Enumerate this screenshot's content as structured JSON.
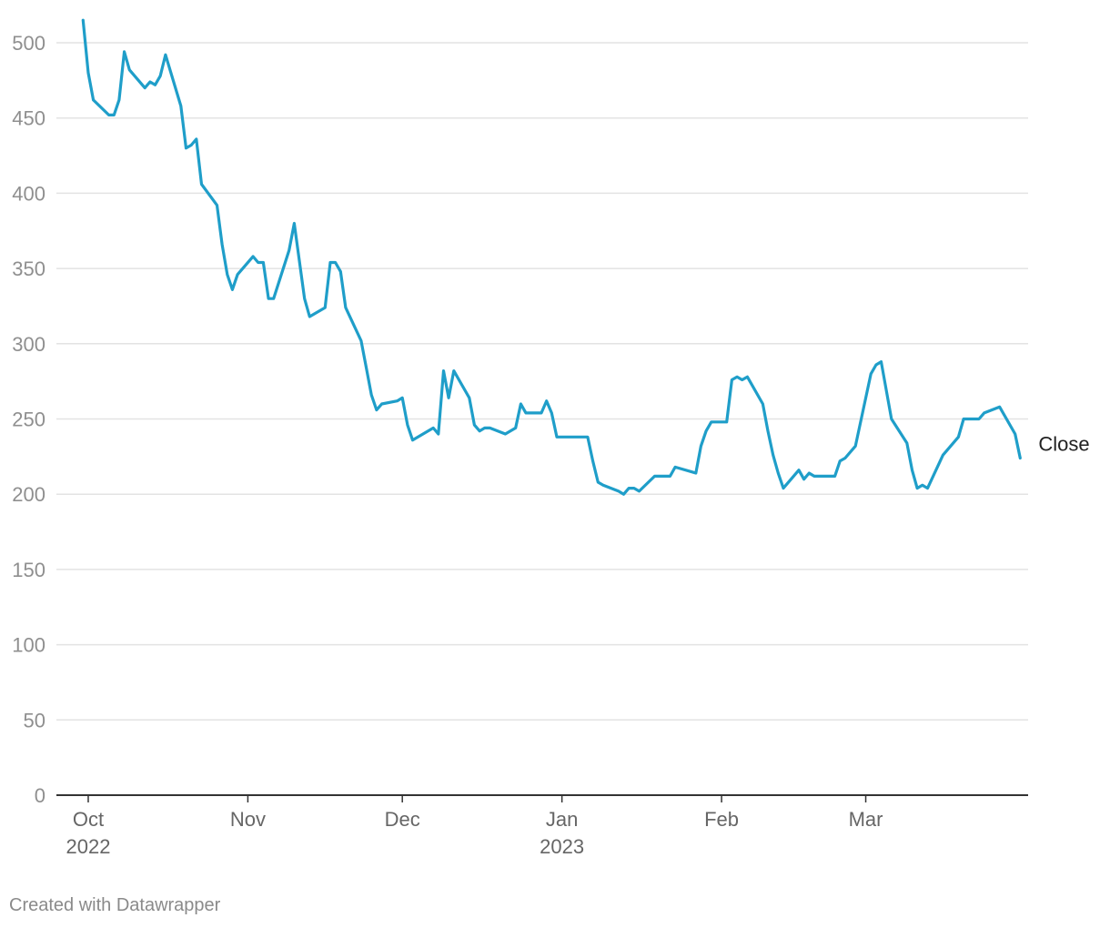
{
  "chart_data": {
    "type": "line",
    "title": "",
    "xlabel": "",
    "ylabel": "",
    "ylim": [
      0,
      500
    ],
    "yticks": [
      0,
      50,
      100,
      150,
      200,
      250,
      300,
      350,
      400,
      450,
      500
    ],
    "grid": true,
    "x_range": [
      "2022-09-28",
      "2023-03-29"
    ],
    "x_ticks": [
      {
        "date": "2022-10-01",
        "label": "Oct",
        "sublabel": "2022"
      },
      {
        "date": "2022-11-01",
        "label": "Nov",
        "sublabel": ""
      },
      {
        "date": "2022-12-01",
        "label": "Dec",
        "sublabel": ""
      },
      {
        "date": "2023-01-01",
        "label": "Jan",
        "sublabel": "2023"
      },
      {
        "date": "2023-02-01",
        "label": "Feb",
        "sublabel": ""
      },
      {
        "date": "2023-03-01",
        "label": "Mar",
        "sublabel": ""
      }
    ],
    "series": [
      {
        "name": "Close",
        "color": "#1f9ec9",
        "points": [
          [
            "2022-09-30",
            515
          ],
          [
            "2022-10-01",
            480
          ],
          [
            "2022-10-02",
            462
          ],
          [
            "2022-10-05",
            452
          ],
          [
            "2022-10-06",
            452
          ],
          [
            "2022-10-07",
            462
          ],
          [
            "2022-10-08",
            494
          ],
          [
            "2022-10-09",
            482
          ],
          [
            "2022-10-12",
            470
          ],
          [
            "2022-10-13",
            474
          ],
          [
            "2022-10-14",
            472
          ],
          [
            "2022-10-15",
            478
          ],
          [
            "2022-10-16",
            492
          ],
          [
            "2022-10-19",
            458
          ],
          [
            "2022-10-20",
            430
          ],
          [
            "2022-10-21",
            432
          ],
          [
            "2022-10-22",
            436
          ],
          [
            "2022-10-23",
            406
          ],
          [
            "2022-10-26",
            392
          ],
          [
            "2022-10-27",
            366
          ],
          [
            "2022-10-28",
            346
          ],
          [
            "2022-10-29",
            336
          ],
          [
            "2022-10-30",
            346
          ],
          [
            "2022-11-02",
            358
          ],
          [
            "2022-11-03",
            354
          ],
          [
            "2022-11-04",
            354
          ],
          [
            "2022-11-05",
            330
          ],
          [
            "2022-11-06",
            330
          ],
          [
            "2022-11-09",
            362
          ],
          [
            "2022-11-10",
            380
          ],
          [
            "2022-11-12",
            330
          ],
          [
            "2022-11-13",
            318
          ],
          [
            "2022-11-16",
            324
          ],
          [
            "2022-11-17",
            354
          ],
          [
            "2022-11-18",
            354
          ],
          [
            "2022-11-19",
            348
          ],
          [
            "2022-11-20",
            324
          ],
          [
            "2022-11-23",
            302
          ],
          [
            "2022-11-24",
            284
          ],
          [
            "2022-11-25",
            266
          ],
          [
            "2022-11-26",
            256
          ],
          [
            "2022-11-27",
            260
          ],
          [
            "2022-11-30",
            262
          ],
          [
            "2022-12-01",
            264
          ],
          [
            "2022-12-02",
            246
          ],
          [
            "2022-12-03",
            236
          ],
          [
            "2022-12-07",
            244
          ],
          [
            "2022-12-08",
            240
          ],
          [
            "2022-12-09",
            282
          ],
          [
            "2022-12-10",
            264
          ],
          [
            "2022-12-11",
            282
          ],
          [
            "2022-12-14",
            264
          ],
          [
            "2022-12-15",
            246
          ],
          [
            "2022-12-16",
            242
          ],
          [
            "2022-12-17",
            244
          ],
          [
            "2022-12-18",
            244
          ],
          [
            "2022-12-21",
            240
          ],
          [
            "2022-12-23",
            244
          ],
          [
            "2022-12-24",
            260
          ],
          [
            "2022-12-25",
            254
          ],
          [
            "2022-12-28",
            254
          ],
          [
            "2022-12-29",
            262
          ],
          [
            "2022-12-30",
            254
          ],
          [
            "2022-12-31",
            238
          ],
          [
            "2023-01-06",
            238
          ],
          [
            "2023-01-07",
            222
          ],
          [
            "2023-01-08",
            208
          ],
          [
            "2023-01-09",
            206
          ],
          [
            "2023-01-12",
            202
          ],
          [
            "2023-01-13",
            200
          ],
          [
            "2023-01-14",
            204
          ],
          [
            "2023-01-15",
            204
          ],
          [
            "2023-01-16",
            202
          ],
          [
            "2023-01-19",
            212
          ],
          [
            "2023-01-22",
            212
          ],
          [
            "2023-01-23",
            218
          ],
          [
            "2023-01-27",
            214
          ],
          [
            "2023-01-28",
            232
          ],
          [
            "2023-01-29",
            242
          ],
          [
            "2023-01-30",
            248
          ],
          [
            "2023-02-02",
            248
          ],
          [
            "2023-02-03",
            276
          ],
          [
            "2023-02-04",
            278
          ],
          [
            "2023-02-05",
            276
          ],
          [
            "2023-02-06",
            278
          ],
          [
            "2023-02-09",
            260
          ],
          [
            "2023-02-10",
            242
          ],
          [
            "2023-02-11",
            226
          ],
          [
            "2023-02-12",
            214
          ],
          [
            "2023-02-13",
            204
          ],
          [
            "2023-02-16",
            216
          ],
          [
            "2023-02-17",
            210
          ],
          [
            "2023-02-18",
            214
          ],
          [
            "2023-02-19",
            212
          ],
          [
            "2023-02-23",
            212
          ],
          [
            "2023-02-24",
            222
          ],
          [
            "2023-02-25",
            224
          ],
          [
            "2023-02-27",
            232
          ],
          [
            "2023-03-02",
            280
          ],
          [
            "2023-03-03",
            286
          ],
          [
            "2023-03-04",
            288
          ],
          [
            "2023-03-06",
            250
          ],
          [
            "2023-03-09",
            234
          ],
          [
            "2023-03-10",
            216
          ],
          [
            "2023-03-11",
            204
          ],
          [
            "2023-03-12",
            206
          ],
          [
            "2023-03-13",
            204
          ],
          [
            "2023-03-16",
            226
          ],
          [
            "2023-03-19",
            238
          ],
          [
            "2023-03-20",
            250
          ],
          [
            "2023-03-23",
            250
          ],
          [
            "2023-03-24",
            254
          ],
          [
            "2023-03-27",
            258
          ],
          [
            "2023-03-30",
            240
          ],
          [
            "2023-03-31",
            224
          ]
        ]
      }
    ]
  },
  "footer": {
    "credit": "Created with Datawrapper"
  }
}
